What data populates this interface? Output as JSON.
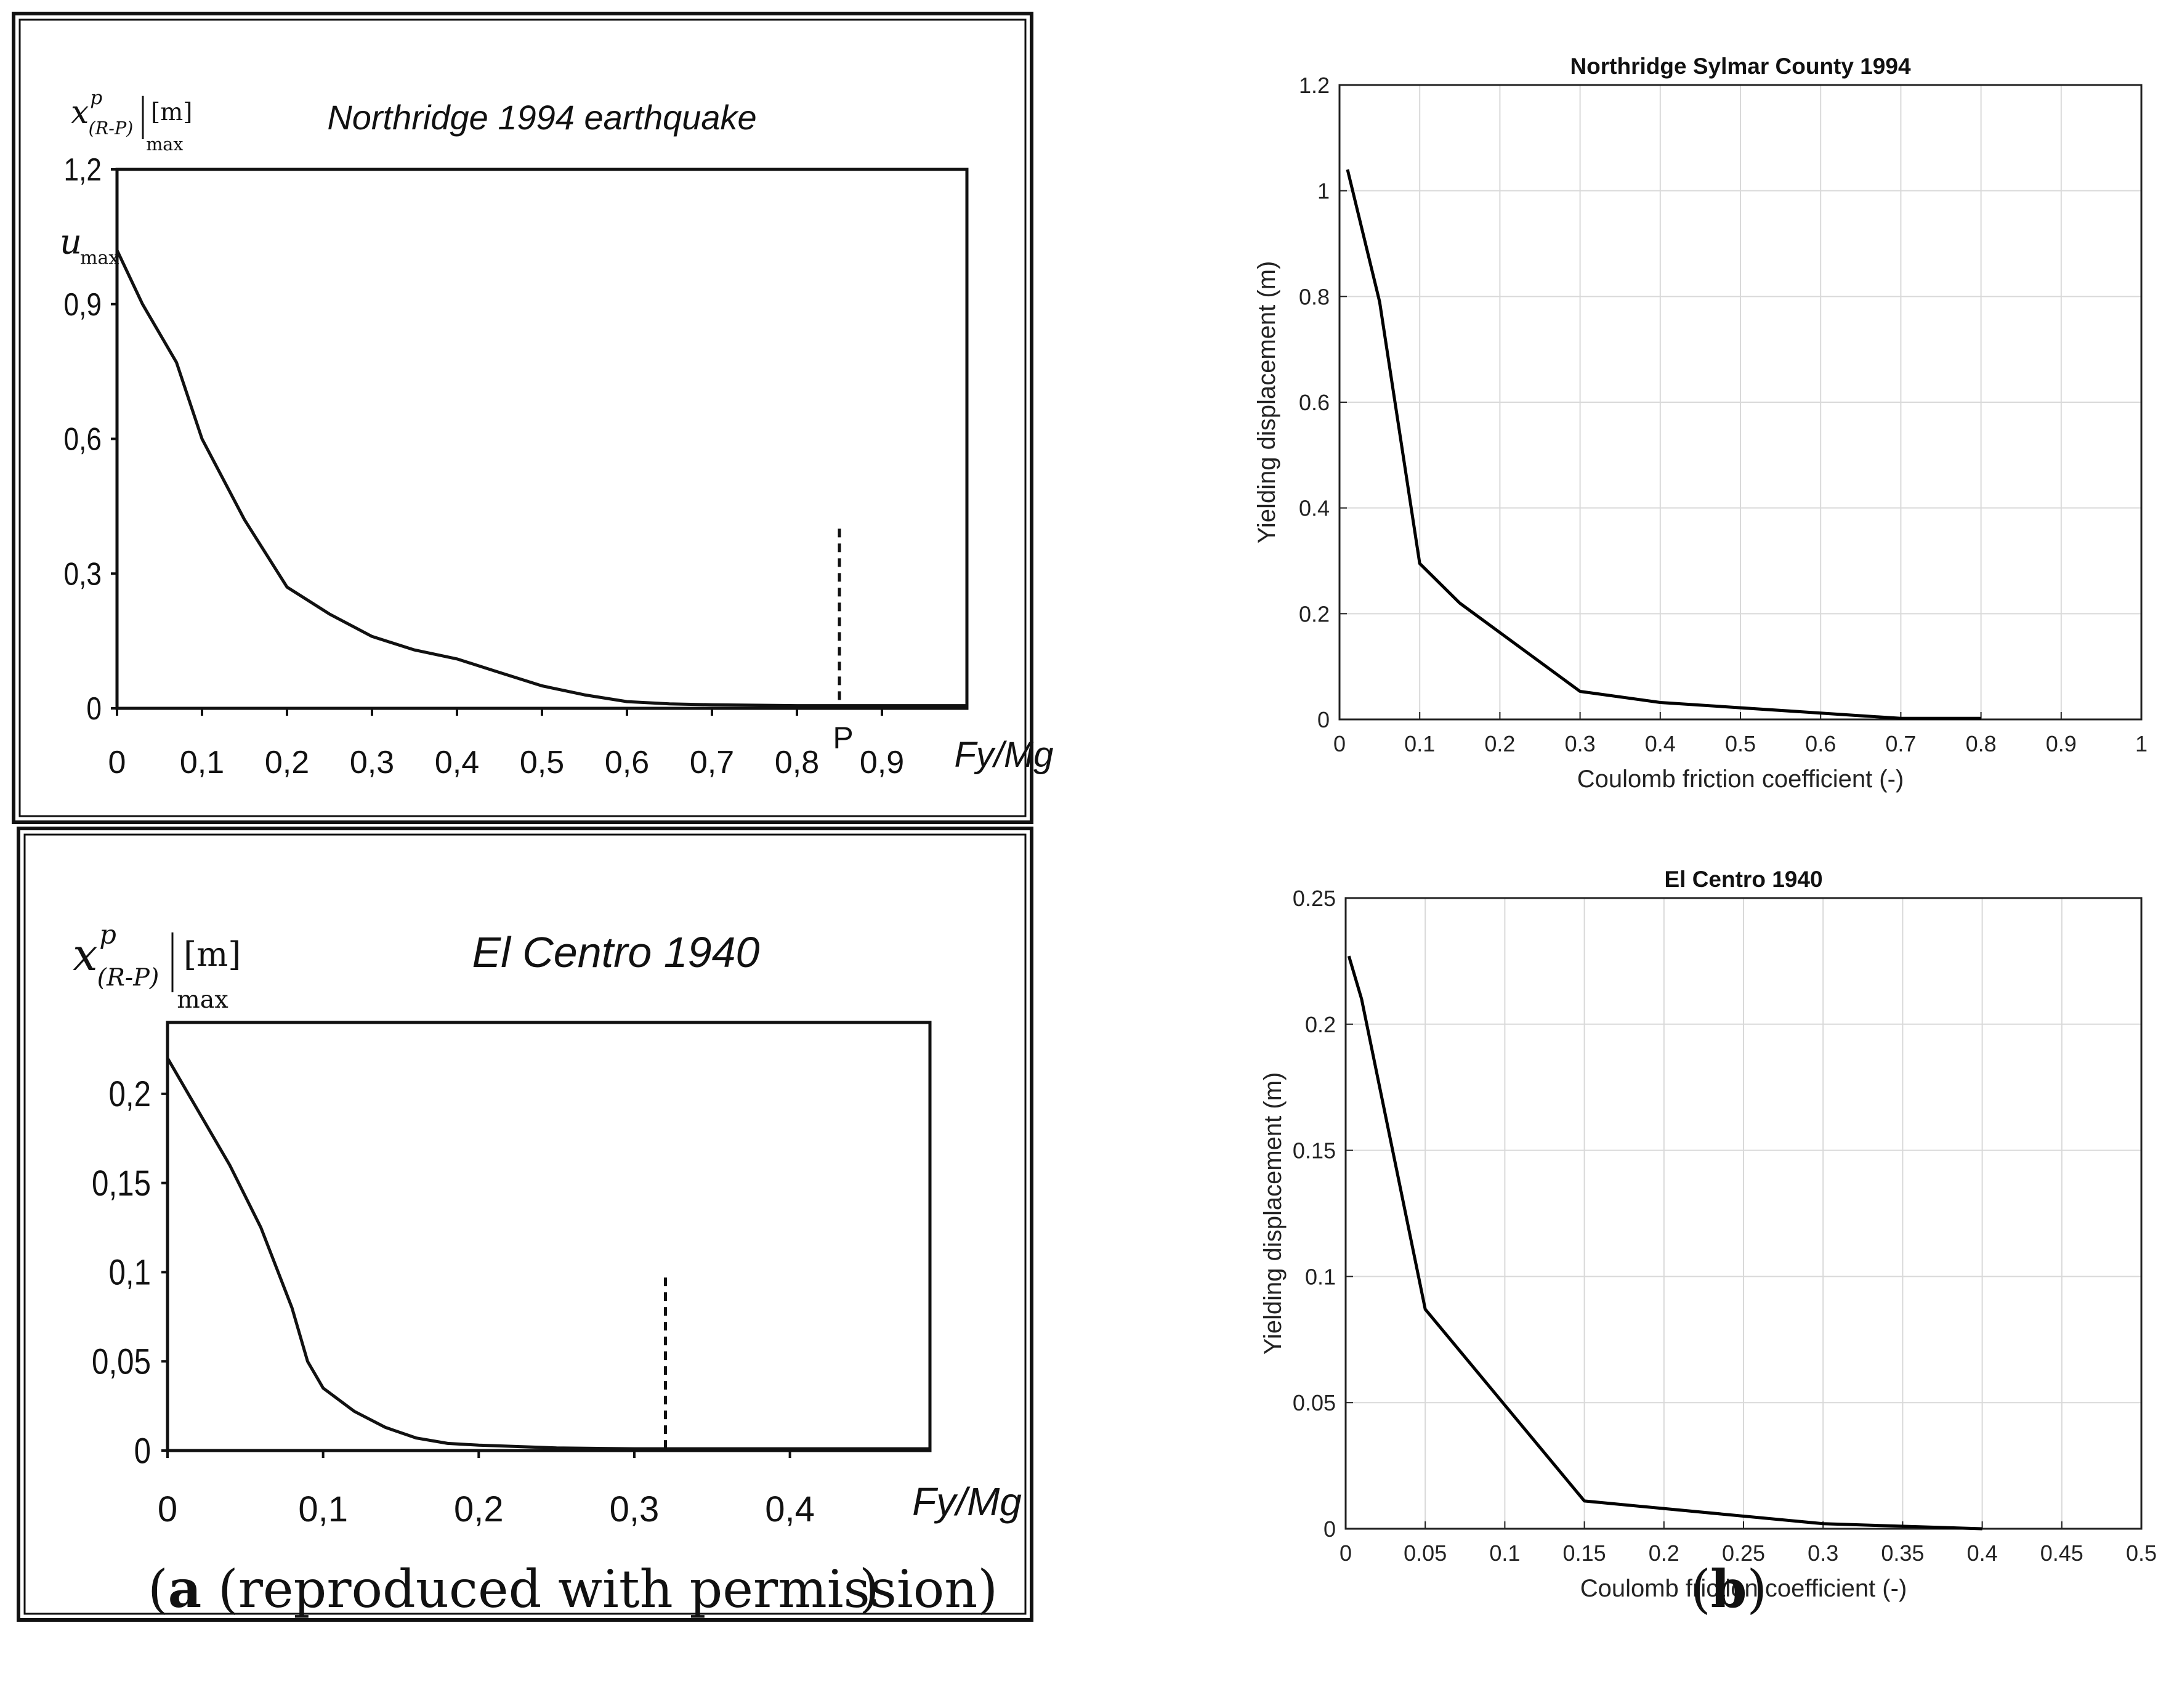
{
  "captions": {
    "a_letter": "a",
    "a_text": " (reproduced with permission)",
    "b_letter": "b"
  },
  "chart_data": [
    {
      "id": "a-top",
      "panel": "a",
      "type": "line",
      "title": "Northridge 1994 earthquake",
      "ylabel_main": "x",
      "ylabel_sup": "p",
      "ylabel_sub": "(R-P)",
      "ylabel_subscript": "max",
      "ylabel_unit": "[m]",
      "ylabel_umax": "u",
      "ylabel_umax_sub": "max",
      "xlabel": "Fy/Mg",
      "xlim": [
        0,
        1.0
      ],
      "ylim": [
        0,
        1.2
      ],
      "xticks": [
        0,
        0.1,
        0.2,
        0.3,
        0.4,
        0.5,
        0.6,
        0.7,
        0.8,
        0.9
      ],
      "xtick_labels": [
        "0",
        "0,1",
        "0,2",
        "0,3",
        "0,4",
        "0,5",
        "0,6",
        "0,7",
        "0,8",
        "0,9"
      ],
      "yticks": [
        0,
        0.3,
        0.6,
        0.9,
        1.2
      ],
      "ytick_labels": [
        "0",
        "0,3",
        "0,6",
        "0,9",
        "1,2"
      ],
      "x": [
        0,
        0.03,
        0.07,
        0.1,
        0.15,
        0.2,
        0.25,
        0.3,
        0.35,
        0.4,
        0.45,
        0.5,
        0.55,
        0.6,
        0.65,
        0.7,
        0.8,
        0.9,
        1.0
      ],
      "y": [
        1.02,
        0.9,
        0.77,
        0.6,
        0.42,
        0.27,
        0.21,
        0.16,
        0.13,
        0.11,
        0.08,
        0.05,
        0.03,
        0.015,
        0.01,
        0.008,
        0.006,
        0.006,
        0.006
      ],
      "marker_x": 0.85,
      "marker_top": 0.4,
      "marker_label": "P",
      "grid": false
    },
    {
      "id": "a-bottom",
      "panel": "a",
      "type": "line",
      "title": "El Centro 1940",
      "ylabel_main": "x",
      "ylabel_sup": "p",
      "ylabel_sub": "(R-P)",
      "ylabel_subscript": "max",
      "ylabel_unit": "[m]",
      "xlabel": "Fy/Mg",
      "xlim": [
        0,
        0.49
      ],
      "ylim": [
        0,
        0.24
      ],
      "xticks": [
        0,
        0.1,
        0.2,
        0.3,
        0.4
      ],
      "xtick_labels": [
        "0",
        "0,1",
        "0,2",
        "0,3",
        "0,4"
      ],
      "yticks": [
        0,
        0.05,
        0.1,
        0.15,
        0.2
      ],
      "ytick_labels": [
        "0",
        "0,05",
        "0,1",
        "0,15",
        "0,2"
      ],
      "x": [
        0,
        0.02,
        0.04,
        0.06,
        0.08,
        0.09,
        0.1,
        0.12,
        0.14,
        0.16,
        0.18,
        0.2,
        0.25,
        0.3,
        0.4,
        0.49
      ],
      "y": [
        0.22,
        0.19,
        0.16,
        0.125,
        0.08,
        0.05,
        0.035,
        0.022,
        0.013,
        0.007,
        0.004,
        0.003,
        0.0015,
        0.001,
        0.001,
        0.001
      ],
      "marker_x": 0.32,
      "marker_top": 0.097,
      "grid": false
    },
    {
      "id": "b-top",
      "panel": "b",
      "type": "line",
      "title": "Northridge Sylmar County 1994",
      "xlabel": "Coulomb friction coefficient (-)",
      "ylabel": "Yielding displacement (m)",
      "xlim": [
        0,
        1
      ],
      "ylim": [
        0,
        1.2
      ],
      "xticks": [
        0,
        0.1,
        0.2,
        0.3,
        0.4,
        0.5,
        0.6,
        0.7,
        0.8,
        0.9,
        1
      ],
      "xtick_labels": [
        "0",
        "0.1",
        "0.2",
        "0.3",
        "0.4",
        "0.5",
        "0.6",
        "0.7",
        "0.8",
        "0.9",
        "1"
      ],
      "yticks": [
        0,
        0.2,
        0.4,
        0.6,
        0.8,
        1,
        1.2
      ],
      "ytick_labels": [
        "0",
        "0.2",
        "0.4",
        "0.6",
        "0.8",
        "1",
        "1.2"
      ],
      "x": [
        0.01,
        0.05,
        0.1,
        0.15,
        0.3,
        0.4,
        0.7,
        0.8
      ],
      "y": [
        1.04,
        0.79,
        0.295,
        0.22,
        0.053,
        0.032,
        0.002,
        0.002
      ],
      "grid": true
    },
    {
      "id": "b-bottom",
      "panel": "b",
      "type": "line",
      "title": "El Centro 1940",
      "xlabel": "Coulomb friction coefficient (-)",
      "ylabel": "Yielding displacement (m)",
      "xlim": [
        0,
        0.5
      ],
      "ylim": [
        0,
        0.25
      ],
      "xticks": [
        0,
        0.05,
        0.1,
        0.15,
        0.2,
        0.25,
        0.3,
        0.35,
        0.4,
        0.45,
        0.5
      ],
      "xtick_labels": [
        "0",
        "0.05",
        "0.1",
        "0.15",
        "0.2",
        "0.25",
        "0.3",
        "0.35",
        "0.4",
        "0.45",
        "0.5"
      ],
      "yticks": [
        0,
        0.05,
        0.1,
        0.15,
        0.2,
        0.25
      ],
      "ytick_labels": [
        "0",
        "0.05",
        "0.1",
        "0.15",
        "0.2",
        "0.25"
      ],
      "x": [
        0.002,
        0.01,
        0.05,
        0.15,
        0.3,
        0.4
      ],
      "y": [
        0.227,
        0.21,
        0.087,
        0.011,
        0.002,
        0.0
      ],
      "grid": true
    }
  ]
}
